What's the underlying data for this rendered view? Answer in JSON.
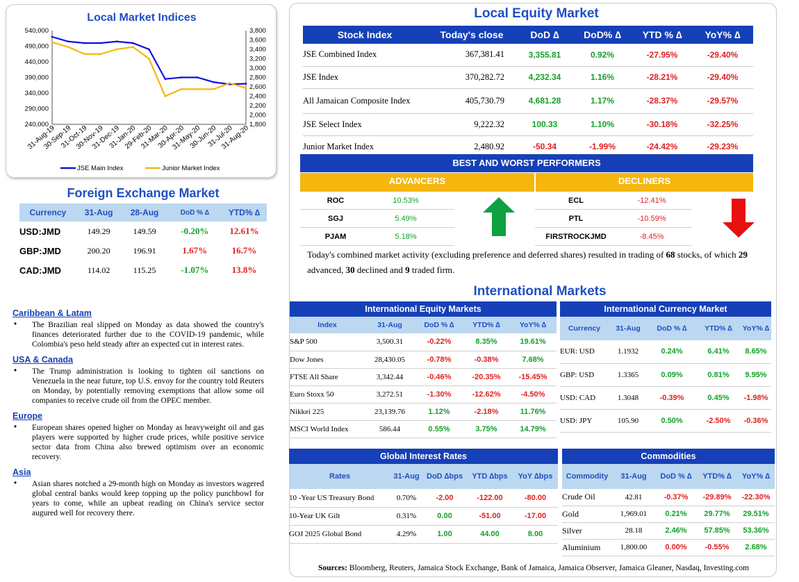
{
  "chart": {
    "title": "Local Market Indices",
    "left_ticks": [
      "540,000",
      "490,000",
      "440,000",
      "390,000",
      "340,000",
      "290,000",
      "240,000"
    ],
    "right_ticks": [
      "3,800",
      "3,600",
      "3,400",
      "3,200",
      "3,000",
      "2,800",
      "2,600",
      "2,400",
      "2,200",
      "2,000",
      "1,800"
    ],
    "x_labels": [
      "31-Aug-19",
      "30-Sep-19",
      "31-Oct-19",
      "30-Nov-19",
      "31-Dec-19",
      "31-Jan-20",
      "29-Feb-20",
      "31-Mar-20",
      "30-Apr-20",
      "31-May-20",
      "30-Jun-20",
      "31-Jul-20",
      "31-Aug-20"
    ],
    "legend_main": "JSE Main Index",
    "legend_junior": "Junior Market Index",
    "color_main": "#1010e0",
    "color_junior": "#f5b70e"
  },
  "chart_data": {
    "type": "line",
    "x": [
      "31-Aug-19",
      "30-Sep-19",
      "31-Oct-19",
      "30-Nov-19",
      "31-Dec-19",
      "31-Jan-20",
      "29-Feb-20",
      "31-Mar-20",
      "30-Apr-20",
      "31-May-20",
      "30-Jun-20",
      "31-Jul-20",
      "31-Aug-20"
    ],
    "series": [
      {
        "name": "JSE Main Index",
        "axis": "left",
        "values": [
          520000,
          505000,
          500000,
          500000,
          505000,
          500000,
          480000,
          385000,
          390000,
          390000,
          375000,
          368000,
          370000
        ]
      },
      {
        "name": "Junior Market Index",
        "axis": "right",
        "values": [
          3550,
          3450,
          3300,
          3300,
          3400,
          3450,
          3200,
          2400,
          2550,
          2550,
          2550,
          2680,
          2570
        ]
      }
    ],
    "ylim_left": [
      240000,
      540000
    ],
    "ylim_right": [
      1800,
      3800
    ]
  },
  "fx": {
    "title": "Foreign Exchange Market",
    "headers": [
      "Currency",
      "31-Aug",
      "28-Aug",
      "DoD % ∆",
      "YTD% ∆"
    ],
    "rows": [
      {
        "currency": "USD:JMD",
        "c1": "149.29",
        "c2": "149.59",
        "dod": "-0.20%",
        "ytd": "12.61%",
        "dod_dir": "pos",
        "ytd_dir": "neg"
      },
      {
        "currency": "GBP:JMD",
        "c1": "200.20",
        "c2": "196.91",
        "dod": "1.67%",
        "ytd": "16.7%",
        "dod_dir": "neg",
        "ytd_dir": "neg"
      },
      {
        "currency": "CAD:JMD",
        "c1": "114.02",
        "c2": "115.25",
        "dod": "-1.07%",
        "ytd": "13.8%",
        "dod_dir": "pos",
        "ytd_dir": "neg"
      }
    ]
  },
  "news": [
    {
      "title": "Caribbean & Latam",
      "text": "The Brazilian real slipped on Monday as data showed the country's finances deteriorated further due to the COVID-19 pandemic, while Colombia's peso held steady after an expected cut in interest rates."
    },
    {
      "title": "USA & Canada",
      "text": "The Trump administration is looking to tighten oil sanctions on Venezuela in the near future, top U.S. envoy for the country told Reuters on Monday, by potentially removing exemptions that allow some oil companies to receive crude oil from the OPEC member."
    },
    {
      "title": "Europe",
      "text": "European shares opened higher on Monday as heavyweight oil and gas players were supported by higher crude prices, while positive service sector data from China also brewed optimism over an economic recovery."
    },
    {
      "title": "Asia",
      "text": "Asian shares notched a 29-month high on Monday as investors wagered global central banks would keep topping up the policy punchbowl for years to come, while an upbeat reading on China's service sector augured well for recovery there."
    }
  ],
  "equity": {
    "title": "Local Equity Market",
    "headers": [
      "Stock Index",
      "Today's close",
      "DoD ∆",
      "DoD% ∆",
      "YTD % ∆",
      "YoY% ∆"
    ],
    "rows": [
      {
        "name": "JSE Combined Index",
        "close": "367,381.41",
        "dod": "3,355.81",
        "dodp": "0.92%",
        "ytd": "-27.95%",
        "yoy": "-29.40%",
        "d": "pos"
      },
      {
        "name": "JSE Index",
        "close": "370,282.72",
        "dod": "4,232.34",
        "dodp": "1.16%",
        "ytd": "-28.21%",
        "yoy": "-29.40%",
        "d": "pos"
      },
      {
        "name": "All Jamaican Composite Index",
        "close": "405,730.79",
        "dod": "4,681.28",
        "dodp": "1.17%",
        "ytd": "-28.37%",
        "yoy": "-29.57%",
        "d": "pos"
      },
      {
        "name": "JSE Select Index",
        "close": "9,222.32",
        "dod": "100.33",
        "dodp": "1.10%",
        "ytd": "-30.18%",
        "yoy": "-32.25%",
        "d": "pos"
      },
      {
        "name": "Junior Market Index",
        "close": "2,480.92",
        "dod": "-50.34",
        "dodp": "-1.99%",
        "ytd": "-24.42%",
        "yoy": "-29.23%",
        "d": "neg"
      }
    ]
  },
  "performers": {
    "title": "BEST AND WORST PERFORMERS",
    "advancers_label": "ADVANCERS",
    "decliners_label": "DECLINERS",
    "advancers": [
      {
        "sym": "ROC",
        "pct": "10.53%"
      },
      {
        "sym": "SGJ",
        "pct": "5.49%"
      },
      {
        "sym": "PJAM",
        "pct": "5.18%"
      }
    ],
    "decliners": [
      {
        "sym": "ECL",
        "pct": "-12.41%"
      },
      {
        "sym": "PTL",
        "pct": "-10.59%"
      },
      {
        "sym": "FIRSTROCKJMD",
        "pct": "-8.45%"
      }
    ]
  },
  "summary": {
    "p1": "Today's combined market activity (excluding preference and deferred shares) resulted in trading of ",
    "n_stocks": "68",
    "p2": " stocks, of which ",
    "n_adv": "29",
    "p3": " advanced, ",
    "n_dec": "30",
    "p4": " declined and ",
    "n_firm": "9",
    "p5": " traded firm."
  },
  "intl_title": "International Markets",
  "intl_equity": {
    "caption": "International Equity Markets",
    "headers": [
      "Index",
      "31-Aug",
      "DoD % ∆",
      "YTD% ∆",
      "YoY% ∆"
    ],
    "rows": [
      {
        "name": "S&P 500",
        "v": "3,500.31",
        "dod": "-0.22%",
        "ytd": "8.35%",
        "yoy": "19.61%",
        "dd": "neg",
        "yd": "pos",
        "od": "pos"
      },
      {
        "name": "Dow Jones",
        "v": "28,430.05",
        "dod": "-0.78%",
        "ytd": "-0.38%",
        "yoy": "7.68%",
        "dd": "neg",
        "yd": "neg",
        "od": "pos"
      },
      {
        "name": "FTSE All Share",
        "v": "3,342.44",
        "dod": "-0.46%",
        "ytd": "-20.35%",
        "yoy": "-15.45%",
        "dd": "neg",
        "yd": "neg",
        "od": "neg"
      },
      {
        "name": "Euro Stoxx 50",
        "v": "3,272.51",
        "dod": "-1.30%",
        "ytd": "-12.62%",
        "yoy": "-4.50%",
        "dd": "neg",
        "yd": "neg",
        "od": "neg"
      },
      {
        "name": "Nikkei 225",
        "v": "23,139.76",
        "dod": "1.12%",
        "ytd": "-2.18%",
        "yoy": "11.76%",
        "dd": "pos",
        "yd": "neg",
        "od": "pos"
      },
      {
        "name": "MSCI World Index",
        "v": "586.44",
        "dod": "0.55%",
        "ytd": "3.75%",
        "yoy": "14.79%",
        "dd": "pos",
        "yd": "pos",
        "od": "pos"
      }
    ]
  },
  "intl_currency": {
    "caption": "International Currency Market",
    "headers": [
      "Currency",
      "31-Aug",
      "DoD % ∆",
      "YTD% ∆",
      "YoY% ∆"
    ],
    "rows": [
      {
        "name": "EUR: USD",
        "v": "1.1932",
        "dod": "0.24%",
        "ytd": "6.41%",
        "yoy": "8.65%",
        "dd": "pos",
        "yd": "pos",
        "od": "pos"
      },
      {
        "name": "GBP: USD",
        "v": "1.3365",
        "dod": "0.09%",
        "ytd": "0.81%",
        "yoy": "9.95%",
        "dd": "pos",
        "yd": "pos",
        "od": "pos"
      },
      {
        "name": "USD: CAD",
        "v": "1.3048",
        "dod": "-0.39%",
        "ytd": "0.45%",
        "yoy": "-1.98%",
        "dd": "neg",
        "yd": "pos",
        "od": "neg"
      },
      {
        "name": "USD: JPY",
        "v": "105.90",
        "dod": "0.50%",
        "ytd": "-2.50%",
        "yoy": "-0.36%",
        "dd": "pos",
        "yd": "neg",
        "od": "neg"
      }
    ]
  },
  "rates": {
    "caption": "Global Interest Rates",
    "headers": [
      "Rates",
      "31-Aug",
      "DoD ∆bps",
      "YTD ∆bps",
      "YoY ∆bps"
    ],
    "rows": [
      {
        "name": "10 -Year US Treasury Bond",
        "v": "0.70%",
        "dod": "-2.00",
        "ytd": "-122.00",
        "yoy": "-80.00",
        "dd": "neg",
        "yd": "neg",
        "od": "neg"
      },
      {
        "name": "10-Year UK Gilt",
        "v": "0.31%",
        "dod": "0.00",
        "ytd": "-51.00",
        "yoy": "-17.00",
        "dd": "pos",
        "yd": "neg",
        "od": "neg"
      },
      {
        "name": "GOJ 2025 Global Bond",
        "v": "4.29%",
        "dod": "1.00",
        "ytd": "44.00",
        "yoy": "8.00",
        "dd": "pos",
        "yd": "pos",
        "od": "pos"
      }
    ]
  },
  "commodities": {
    "caption": "Commodities",
    "headers": [
      "Commodity",
      "31-Aug",
      "DoD % ∆",
      "YTD% ∆",
      "YoY% ∆"
    ],
    "rows": [
      {
        "name": "Crude Oil",
        "v": "42.81",
        "dod": "-0.37%",
        "ytd": "-29.89%",
        "yoy": "-22.30%",
        "dd": "neg",
        "yd": "neg",
        "od": "neg"
      },
      {
        "name": "Gold",
        "v": "1,969.01",
        "dod": "0.21%",
        "ytd": "29.77%",
        "yoy": "29.51%",
        "dd": "pos",
        "yd": "pos",
        "od": "pos"
      },
      {
        "name": "Silver",
        "v": "28.18",
        "dod": "2.46%",
        "ytd": "57.85%",
        "yoy": "53.36%",
        "dd": "pos",
        "yd": "pos",
        "od": "pos"
      },
      {
        "name": "Aluminium",
        "v": "1,800.00",
        "dod": "0.00%",
        "ytd": "-0.55%",
        "yoy": "2.68%",
        "dd": "neg",
        "yd": "neg",
        "od": "pos"
      }
    ]
  },
  "sources": {
    "label": "Sources:",
    "text": " Bloomberg, Reuters, Jamaica Stock Exchange, Bank of Jamaica, Jamaica Observer, Jamaica Gleaner, Nasdaq, Investing.com"
  }
}
